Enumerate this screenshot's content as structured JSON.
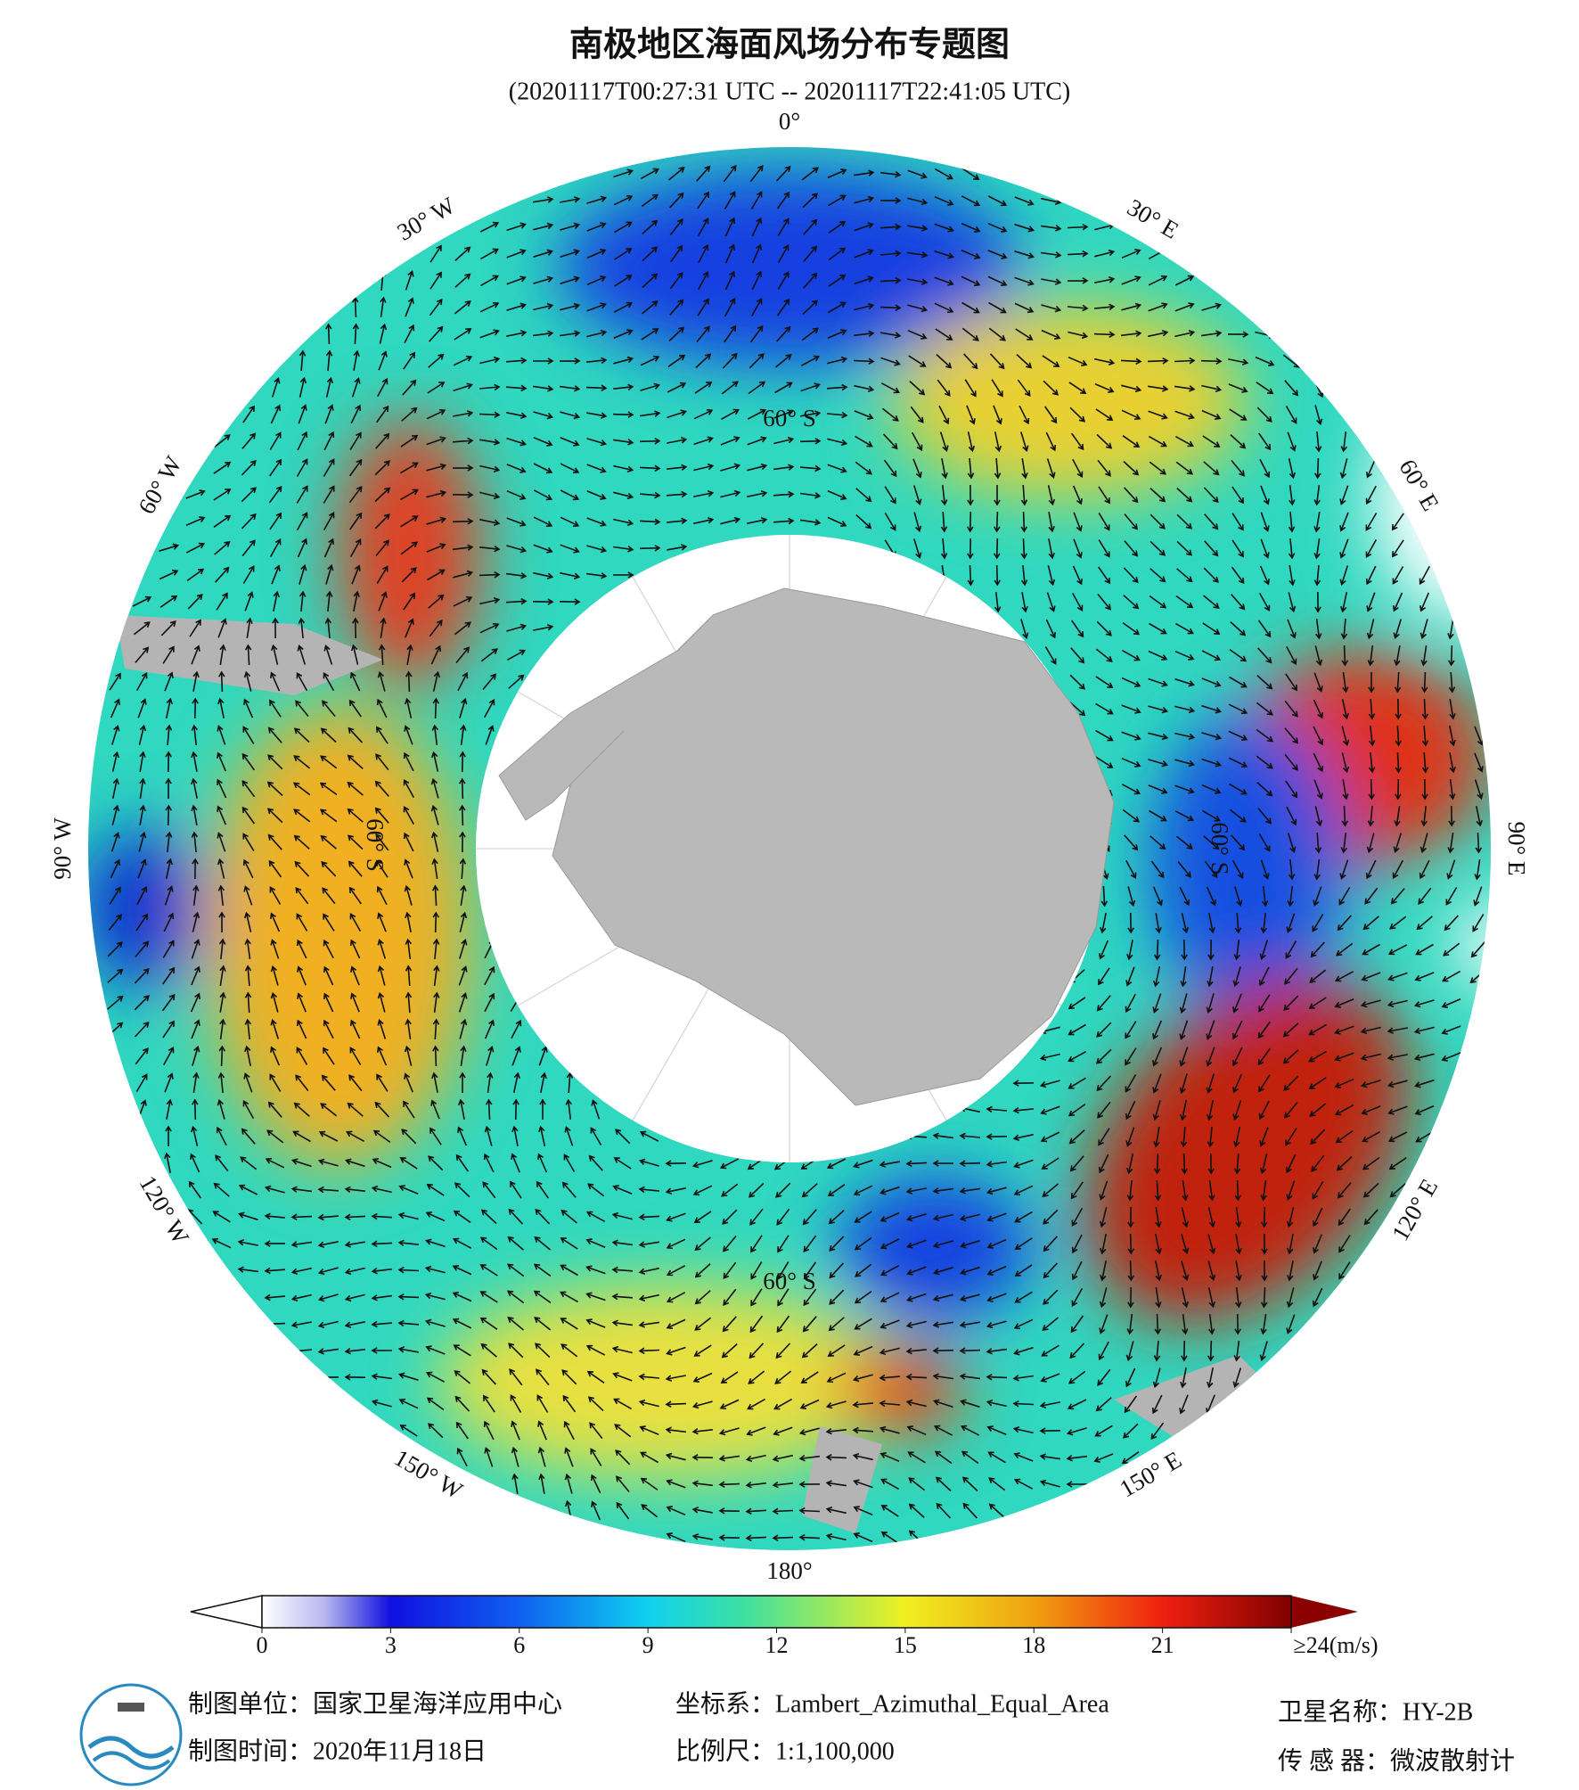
{
  "title": "南极地区海面风场分布专题图",
  "subtitle": "(20201117T00:27:31 UTC -- 20201117T22:41:05 UTC)",
  "longitude_labels": [
    "0°",
    "30° E",
    "60° E",
    "90° E",
    "120° E",
    "150° E",
    "180°",
    "150° W",
    "120° W",
    "90° W",
    "60° W",
    "30° W"
  ],
  "latitude_labels": [
    "60° S",
    "60° S",
    "60° S",
    "60° S"
  ],
  "colorbar": {
    "ticks": [
      0,
      3,
      6,
      9,
      12,
      15,
      18,
      21,
      {
        "value": 24,
        "label": "≥24(m/s)"
      }
    ],
    "lim": [
      0,
      24
    ]
  },
  "footer": {
    "unit": "制图单位：国家卫星海洋应用中心",
    "time": "制图时间：2020年11月18日",
    "crs": "坐标系：Lambert_Azimuthal_Equal_Area",
    "scale": "比例尺：1:1,100,000",
    "satellite": "卫星名称：HY-2B",
    "sensor": "传 感 器：微波散射计"
  }
}
